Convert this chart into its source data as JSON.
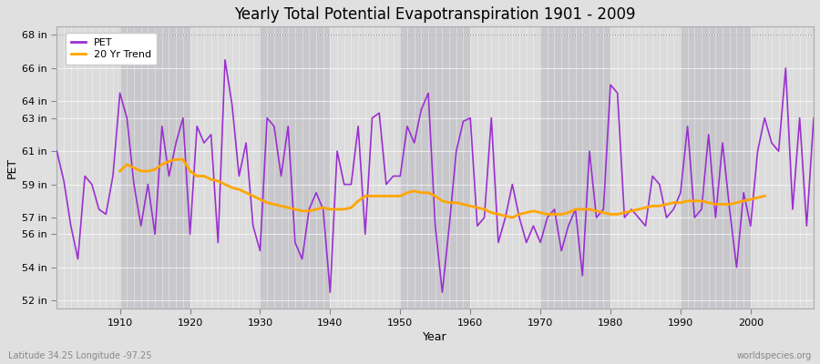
{
  "title": "Yearly Total Potential Evapotranspiration 1901 - 2009",
  "xlabel": "Year",
  "ylabel": "PET",
  "lat_lon_label": "Latitude 34.25 Longitude -97.25",
  "source_label": "worldspecies.org",
  "pet_color": "#9B30D0",
  "trend_color": "#FFA500",
  "fig_bg_color": "#E0E0E0",
  "plot_bg_color": "#DCDCDC",
  "stripe_color_light": "#E8E8E8",
  "stripe_color_dark": "#D0D0D0",
  "ylim": [
    51.5,
    68.5
  ],
  "yticks": [
    52,
    54,
    56,
    57,
    59,
    61,
    63,
    64,
    66,
    68
  ],
  "ytick_labels": [
    "52 in",
    "54 in",
    "56 in",
    "57 in",
    "59 in",
    "61 in",
    "63 in",
    "64 in",
    "66 in",
    "68 in"
  ],
  "xlim": [
    1901,
    2009
  ],
  "xticks": [
    1910,
    1920,
    1930,
    1940,
    1950,
    1960,
    1970,
    1980,
    1990,
    2000
  ],
  "years": [
    1901,
    1902,
    1903,
    1904,
    1905,
    1906,
    1907,
    1908,
    1909,
    1910,
    1911,
    1912,
    1913,
    1914,
    1915,
    1916,
    1917,
    1918,
    1919,
    1920,
    1921,
    1922,
    1923,
    1924,
    1925,
    1926,
    1927,
    1928,
    1929,
    1930,
    1931,
    1932,
    1933,
    1934,
    1935,
    1936,
    1937,
    1938,
    1939,
    1940,
    1941,
    1942,
    1943,
    1944,
    1945,
    1946,
    1947,
    1948,
    1949,
    1950,
    1951,
    1952,
    1953,
    1954,
    1955,
    1956,
    1957,
    1958,
    1959,
    1960,
    1961,
    1962,
    1963,
    1964,
    1965,
    1966,
    1967,
    1968,
    1969,
    1970,
    1971,
    1972,
    1973,
    1974,
    1975,
    1976,
    1977,
    1978,
    1979,
    1980,
    1981,
    1982,
    1983,
    1984,
    1985,
    1986,
    1987,
    1988,
    1989,
    1990,
    1991,
    1992,
    1993,
    1994,
    1995,
    1996,
    1997,
    1998,
    1999,
    2000,
    2001,
    2002,
    2003,
    2004,
    2005,
    2006,
    2007,
    2008,
    2009
  ],
  "pet_values": [
    61.0,
    59.2,
    56.5,
    54.5,
    59.5,
    59.0,
    57.5,
    57.2,
    59.5,
    64.5,
    63.0,
    59.0,
    56.5,
    59.0,
    56.0,
    62.5,
    59.5,
    61.5,
    63.0,
    56.0,
    62.5,
    61.5,
    62.0,
    55.5,
    66.5,
    63.8,
    59.5,
    61.5,
    56.5,
    55.0,
    63.0,
    62.5,
    59.5,
    62.5,
    55.5,
    54.5,
    57.5,
    58.5,
    57.5,
    52.5,
    61.0,
    59.0,
    59.0,
    62.5,
    56.0,
    63.0,
    63.3,
    59.0,
    59.5,
    59.5,
    62.5,
    61.5,
    63.5,
    64.5,
    56.5,
    52.5,
    56.5,
    61.0,
    62.8,
    63.0,
    56.5,
    57.0,
    63.0,
    55.5,
    57.0,
    59.0,
    57.0,
    55.5,
    56.5,
    55.5,
    57.0,
    57.5,
    55.0,
    56.5,
    57.5,
    53.5,
    61.0,
    57.0,
    57.5,
    65.0,
    64.5,
    57.0,
    57.5,
    57.0,
    56.5,
    59.5,
    59.0,
    57.0,
    57.5,
    58.5,
    62.5,
    57.0,
    57.5,
    62.0,
    57.0,
    61.5,
    57.5,
    54.0,
    58.5,
    56.5,
    61.0,
    63.0,
    61.5,
    61.0,
    66.0,
    57.5,
    63.0,
    56.5,
    63.0
  ],
  "trend_values": [
    null,
    null,
    null,
    null,
    null,
    null,
    null,
    null,
    null,
    59.8,
    60.2,
    60.0,
    59.8,
    59.8,
    59.9,
    60.2,
    60.4,
    60.5,
    60.5,
    59.8,
    59.5,
    59.5,
    59.3,
    59.2,
    59.0,
    58.8,
    58.7,
    58.5,
    58.3,
    58.1,
    57.9,
    57.8,
    57.7,
    57.6,
    57.5,
    57.4,
    57.4,
    57.5,
    57.6,
    57.5,
    57.5,
    57.5,
    57.6,
    58.0,
    58.3,
    58.3,
    58.3,
    58.3,
    58.3,
    58.3,
    58.5,
    58.6,
    58.5,
    58.5,
    58.3,
    58.0,
    57.9,
    57.9,
    57.8,
    57.7,
    57.6,
    57.5,
    57.3,
    57.2,
    57.1,
    57.0,
    57.2,
    57.3,
    57.4,
    57.3,
    57.2,
    57.2,
    57.2,
    57.3,
    57.5,
    57.5,
    57.5,
    57.4,
    57.3,
    57.2,
    57.2,
    57.3,
    57.4,
    57.5,
    57.6,
    57.7,
    57.7,
    57.8,
    57.9,
    57.9,
    58.0,
    58.0,
    58.0,
    57.9,
    57.8,
    57.8,
    57.8,
    57.9,
    58.0,
    58.1,
    58.2,
    58.3,
    null
  ]
}
